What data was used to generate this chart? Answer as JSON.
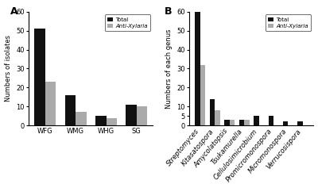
{
  "panel_A": {
    "categories": [
      "WFG",
      "WMG",
      "WHG",
      "SG"
    ],
    "total": [
      51,
      16,
      5,
      11
    ],
    "anti_xylaria": [
      23,
      7,
      4,
      10
    ],
    "ylabel": "Numbers of isolates",
    "ylim": [
      0,
      60
    ],
    "yticks": [
      0,
      10,
      20,
      30,
      40,
      50,
      60
    ],
    "label": "A"
  },
  "panel_B": {
    "categories": [
      "Streptomyces",
      "Kitasatospora",
      "Amycolatopsis",
      "Tsukamurella",
      "Cellulosimicrobium",
      "Promicromonospora",
      "Micromonospora",
      "Verrucosispora"
    ],
    "total": [
      60,
      14,
      3,
      3,
      5,
      5,
      2,
      2
    ],
    "anti_xylaria": [
      32,
      8,
      3,
      3,
      0,
      0,
      0,
      0
    ],
    "ylabel": "Numbers of each genus",
    "ylim": [
      0,
      60
    ],
    "yticks": [
      0,
      5,
      10,
      20,
      30,
      40,
      50,
      60
    ],
    "label": "B"
  },
  "bar_width": 0.35,
  "total_color": "#111111",
  "anti_color": "#aaaaaa",
  "legend_total": "Total",
  "legend_anti": "Anti-Xylaria",
  "background_color": "#ffffff"
}
